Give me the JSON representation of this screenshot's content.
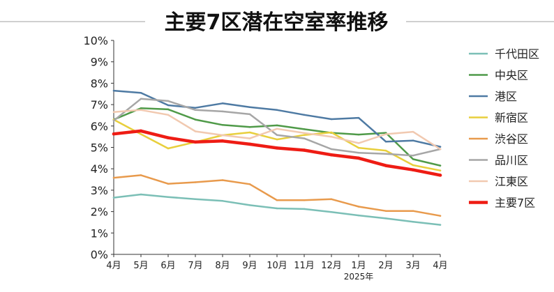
{
  "chart_data": {
    "type": "line",
    "title": "主要7区潜在空室率推移",
    "xlabel": "",
    "ylabel": "",
    "categories": [
      "4月",
      "5月",
      "6月",
      "7月",
      "8月",
      "9月",
      "10月",
      "11月",
      "12月",
      "1月",
      "2月",
      "3月",
      "4月"
    ],
    "year_label": "2025年",
    "year_label_index": 9,
    "ylim": [
      0,
      0.1
    ],
    "y_ticks": [
      0,
      0.01,
      0.02,
      0.03,
      0.04,
      0.05,
      0.06,
      0.07,
      0.08,
      0.09,
      0.1
    ],
    "y_tick_labels": [
      "0%",
      "1%",
      "2%",
      "3%",
      "4%",
      "5%",
      "6%",
      "7%",
      "8%",
      "9%",
      "10%"
    ],
    "grid": false,
    "legend_position": "right",
    "series": [
      {
        "name": "千代田区",
        "color": "#7bbfb6",
        "width": 2.5,
        "values": [
          0.0265,
          0.028,
          0.0268,
          0.0258,
          0.025,
          0.023,
          0.0215,
          0.0212,
          0.0198,
          0.0182,
          0.0168,
          0.0152,
          0.0138
        ]
      },
      {
        "name": "中央区",
        "color": "#4f9a48",
        "width": 2.5,
        "values": [
          0.063,
          0.0683,
          0.0678,
          0.063,
          0.0605,
          0.0595,
          0.0603,
          0.0585,
          0.0568,
          0.056,
          0.0568,
          0.0445,
          0.0415
        ]
      },
      {
        "name": "港区",
        "color": "#4e7aa3",
        "width": 2.5,
        "values": [
          0.0765,
          0.0755,
          0.0697,
          0.0685,
          0.0706,
          0.0688,
          0.0675,
          0.0652,
          0.0632,
          0.0638,
          0.0527,
          0.0532,
          0.0503
        ]
      },
      {
        "name": "新宿区",
        "color": "#e8cf3c",
        "width": 2.5,
        "values": [
          0.063,
          0.0562,
          0.0495,
          0.0525,
          0.0557,
          0.057,
          0.0537,
          0.0558,
          0.057,
          0.0498,
          0.0485,
          0.0417,
          0.0392
        ]
      },
      {
        "name": "渋谷区",
        "color": "#e89a4c",
        "width": 2.5,
        "values": [
          0.0358,
          0.037,
          0.033,
          0.0337,
          0.0347,
          0.0328,
          0.0253,
          0.0253,
          0.0258,
          0.0223,
          0.0203,
          0.0203,
          0.018
        ]
      },
      {
        "name": "品川区",
        "color": "#a6a6a6",
        "width": 2.5,
        "values": [
          0.0625,
          0.0727,
          0.0717,
          0.0675,
          0.0668,
          0.0655,
          0.0558,
          0.0542,
          0.0492,
          0.0475,
          0.047,
          0.0462,
          0.0492
        ]
      },
      {
        "name": "江東区",
        "color": "#f1c9b0",
        "width": 2.5,
        "values": [
          0.0665,
          0.0675,
          0.0652,
          0.0575,
          0.0557,
          0.0542,
          0.0587,
          0.0567,
          0.055,
          0.052,
          0.0562,
          0.0573,
          0.0492
        ]
      },
      {
        "name": "主要7区",
        "color": "#ee1c14",
        "width": 4.5,
        "values": [
          0.0563,
          0.0577,
          0.0545,
          0.0525,
          0.053,
          0.0515,
          0.0497,
          0.0487,
          0.0465,
          0.045,
          0.0415,
          0.0395,
          0.037
        ]
      }
    ]
  }
}
